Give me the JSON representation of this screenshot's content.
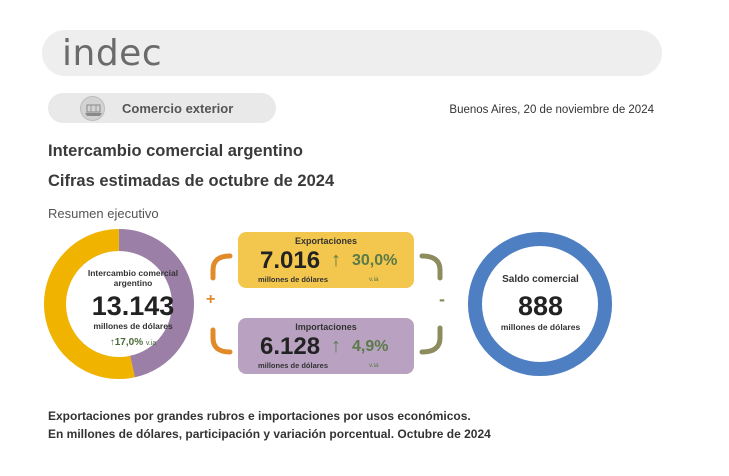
{
  "header": {
    "logo": "indec"
  },
  "section": {
    "label": "Comercio exterior",
    "icon": "cargo-ship-icon"
  },
  "date": "Buenos Aires, 20 de noviembre de 2024",
  "titles": {
    "line1": "Intercambio comercial argentino",
    "line2": "Cifras estimadas de octubre de 2024"
  },
  "summary_label": "Resumen ejecutivo",
  "intercambio": {
    "label": "Intercambio comercial argentino",
    "value": "13.143",
    "unit": "millones de dólares",
    "variation": "17,0%",
    "variation_suffix": "v.ia",
    "arrow": "↑"
  },
  "operators": {
    "plus": "+",
    "minus": "-"
  },
  "exportaciones": {
    "title": "Exportaciones",
    "value": "7.016",
    "unit": "millones de dólares",
    "arrow": "↑",
    "variation": "30,0%",
    "variation_suffix": "v.ia"
  },
  "importaciones": {
    "title": "Importaciones",
    "value": "6.128",
    "unit": "millones de dólares",
    "arrow": "↑",
    "variation": "4,9%",
    "variation_suffix": "v.ia"
  },
  "saldo": {
    "label": "Saldo comercial",
    "value": "888",
    "unit": "millones de dólares"
  },
  "footer": {
    "line1": "Exportaciones por grandes rubros e importaciones por usos económicos.",
    "line2": "En millones de dólares, participación y variación porcentual. Octubre de 2024"
  },
  "colors": {
    "exportaciones": "#f0b400",
    "importaciones": "#9b7fa6",
    "saldo": "#4d7fc2",
    "arrow_green": "#5a7a48"
  },
  "shares": {
    "exportaciones": 0.534,
    "importaciones": 0.466
  }
}
